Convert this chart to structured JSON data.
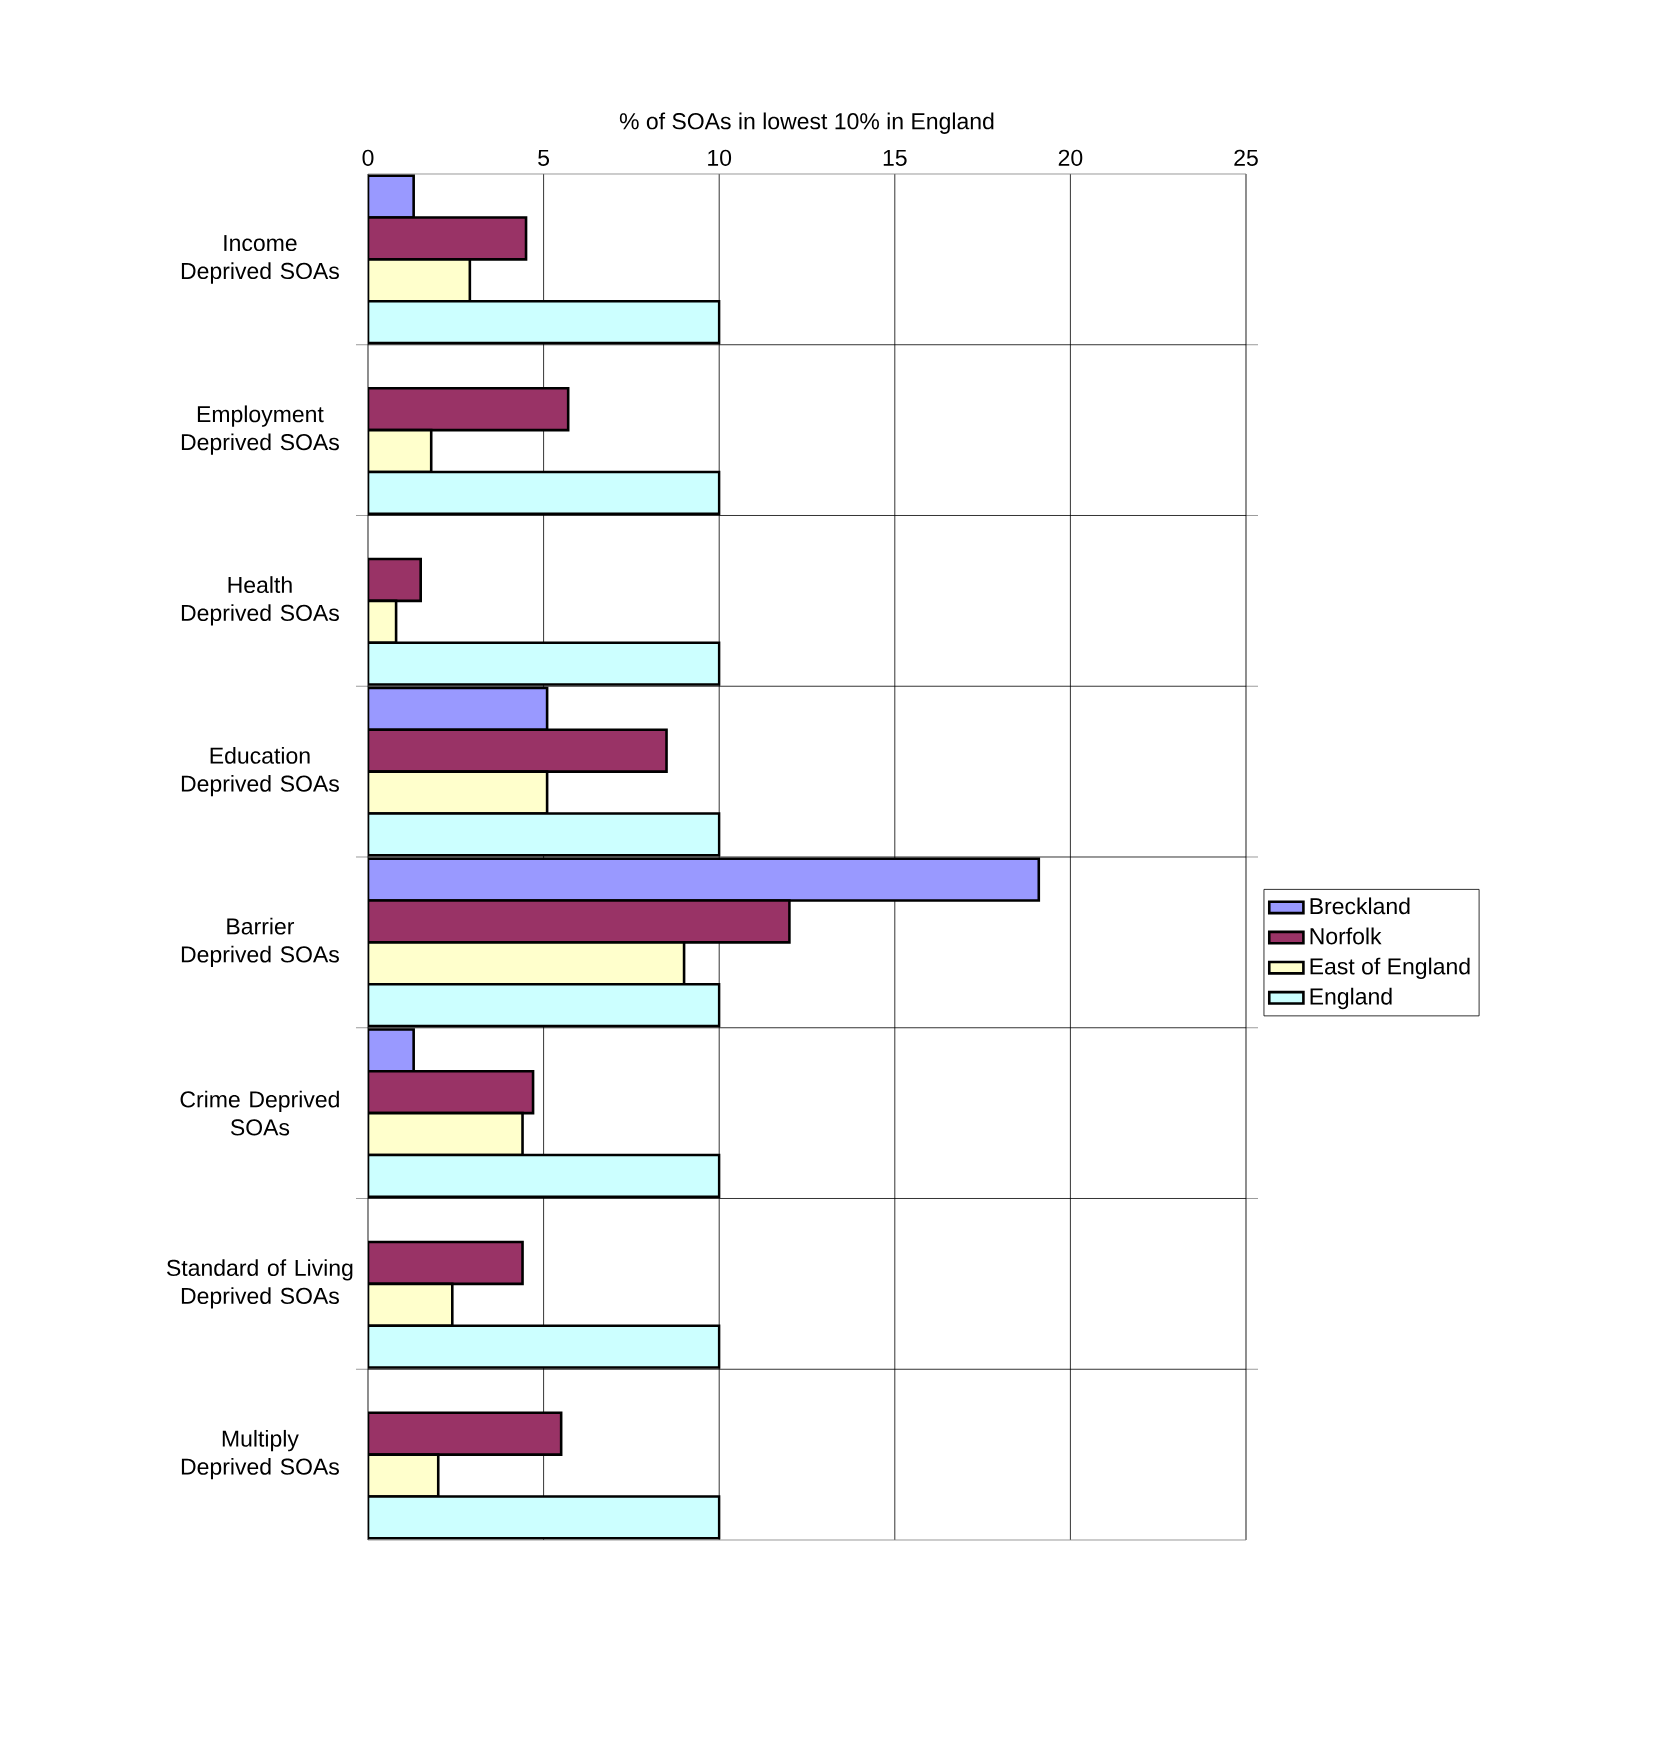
{
  "chart_data": {
    "type": "bar",
    "orientation": "horizontal",
    "xlabel": "% of SOAs in lowest 10% in England",
    "categories": [
      "Income Deprived SOAs",
      "Employment Deprived SOAs",
      "Health Deprived SOAs",
      "Education Deprived SOAs",
      "Barrier Deprived SOAs",
      "Crime Deprived SOAs",
      "Standard of Living Deprived SOAs",
      "Multiply Deprived SOAs"
    ],
    "series": [
      {
        "name": "Breckland",
        "color": "#9999ff",
        "values": [
          1.3,
          null,
          null,
          5.1,
          19.1,
          1.3,
          null,
          null
        ]
      },
      {
        "name": "Norfolk",
        "color": "#993366",
        "values": [
          4.5,
          5.7,
          1.5,
          8.5,
          12.0,
          4.7,
          4.4,
          5.5
        ]
      },
      {
        "name": "East of England",
        "color": "#ffffcc",
        "values": [
          2.9,
          1.8,
          0.8,
          5.1,
          9.0,
          4.4,
          2.4,
          2.0
        ]
      },
      {
        "name": "England",
        "color": "#ccffff",
        "values": [
          10,
          10,
          10,
          10,
          10,
          10,
          10,
          10
        ]
      }
    ],
    "xlim": [
      0,
      25
    ],
    "xticks": [
      0,
      5,
      10,
      15,
      20,
      25
    ],
    "grid": true,
    "legend": "right"
  }
}
